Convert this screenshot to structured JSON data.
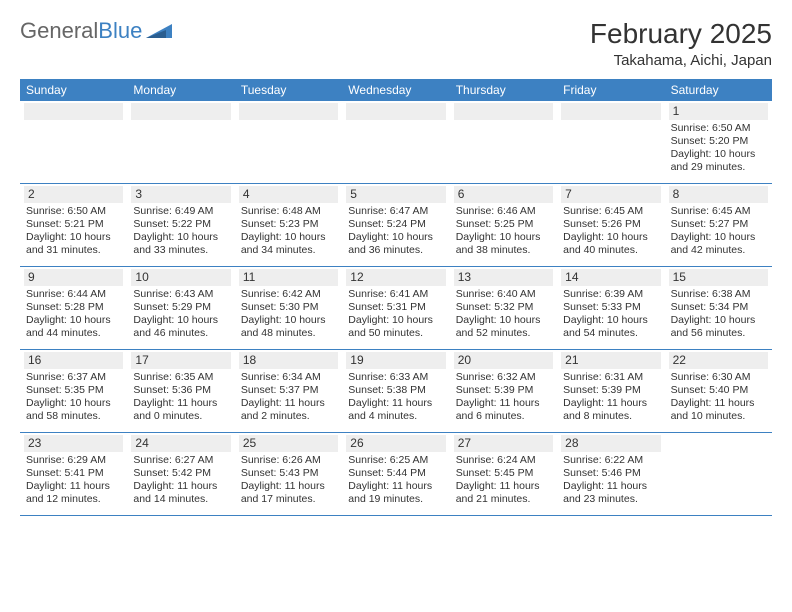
{
  "brand": {
    "part1": "General",
    "part2": "Blue"
  },
  "title": "February 2025",
  "location": "Takahama, Aichi, Japan",
  "dow": [
    "Sunday",
    "Monday",
    "Tuesday",
    "Wednesday",
    "Thursday",
    "Friday",
    "Saturday"
  ],
  "colors": {
    "header_bg": "#3d81c2",
    "header_text": "#ffffff",
    "daynum_bg": "#eeeeee",
    "text": "#333333",
    "row_border": "#3d81c2"
  },
  "weeks": [
    [
      null,
      null,
      null,
      null,
      null,
      null,
      {
        "n": "1",
        "sr": "6:50 AM",
        "ss": "5:20 PM",
        "dl": "10 hours and 29 minutes."
      }
    ],
    [
      {
        "n": "2",
        "sr": "6:50 AM",
        "ss": "5:21 PM",
        "dl": "10 hours and 31 minutes."
      },
      {
        "n": "3",
        "sr": "6:49 AM",
        "ss": "5:22 PM",
        "dl": "10 hours and 33 minutes."
      },
      {
        "n": "4",
        "sr": "6:48 AM",
        "ss": "5:23 PM",
        "dl": "10 hours and 34 minutes."
      },
      {
        "n": "5",
        "sr": "6:47 AM",
        "ss": "5:24 PM",
        "dl": "10 hours and 36 minutes."
      },
      {
        "n": "6",
        "sr": "6:46 AM",
        "ss": "5:25 PM",
        "dl": "10 hours and 38 minutes."
      },
      {
        "n": "7",
        "sr": "6:45 AM",
        "ss": "5:26 PM",
        "dl": "10 hours and 40 minutes."
      },
      {
        "n": "8",
        "sr": "6:45 AM",
        "ss": "5:27 PM",
        "dl": "10 hours and 42 minutes."
      }
    ],
    [
      {
        "n": "9",
        "sr": "6:44 AM",
        "ss": "5:28 PM",
        "dl": "10 hours and 44 minutes."
      },
      {
        "n": "10",
        "sr": "6:43 AM",
        "ss": "5:29 PM",
        "dl": "10 hours and 46 minutes."
      },
      {
        "n": "11",
        "sr": "6:42 AM",
        "ss": "5:30 PM",
        "dl": "10 hours and 48 minutes."
      },
      {
        "n": "12",
        "sr": "6:41 AM",
        "ss": "5:31 PM",
        "dl": "10 hours and 50 minutes."
      },
      {
        "n": "13",
        "sr": "6:40 AM",
        "ss": "5:32 PM",
        "dl": "10 hours and 52 minutes."
      },
      {
        "n": "14",
        "sr": "6:39 AM",
        "ss": "5:33 PM",
        "dl": "10 hours and 54 minutes."
      },
      {
        "n": "15",
        "sr": "6:38 AM",
        "ss": "5:34 PM",
        "dl": "10 hours and 56 minutes."
      }
    ],
    [
      {
        "n": "16",
        "sr": "6:37 AM",
        "ss": "5:35 PM",
        "dl": "10 hours and 58 minutes."
      },
      {
        "n": "17",
        "sr": "6:35 AM",
        "ss": "5:36 PM",
        "dl": "11 hours and 0 minutes."
      },
      {
        "n": "18",
        "sr": "6:34 AM",
        "ss": "5:37 PM",
        "dl": "11 hours and 2 minutes."
      },
      {
        "n": "19",
        "sr": "6:33 AM",
        "ss": "5:38 PM",
        "dl": "11 hours and 4 minutes."
      },
      {
        "n": "20",
        "sr": "6:32 AM",
        "ss": "5:39 PM",
        "dl": "11 hours and 6 minutes."
      },
      {
        "n": "21",
        "sr": "6:31 AM",
        "ss": "5:39 PM",
        "dl": "11 hours and 8 minutes."
      },
      {
        "n": "22",
        "sr": "6:30 AM",
        "ss": "5:40 PM",
        "dl": "11 hours and 10 minutes."
      }
    ],
    [
      {
        "n": "23",
        "sr": "6:29 AM",
        "ss": "5:41 PM",
        "dl": "11 hours and 12 minutes."
      },
      {
        "n": "24",
        "sr": "6:27 AM",
        "ss": "5:42 PM",
        "dl": "11 hours and 14 minutes."
      },
      {
        "n": "25",
        "sr": "6:26 AM",
        "ss": "5:43 PM",
        "dl": "11 hours and 17 minutes."
      },
      {
        "n": "26",
        "sr": "6:25 AM",
        "ss": "5:44 PM",
        "dl": "11 hours and 19 minutes."
      },
      {
        "n": "27",
        "sr": "6:24 AM",
        "ss": "5:45 PM",
        "dl": "11 hours and 21 minutes."
      },
      {
        "n": "28",
        "sr": "6:22 AM",
        "ss": "5:46 PM",
        "dl": "11 hours and 23 minutes."
      },
      null
    ]
  ],
  "labels": {
    "sunrise": "Sunrise:",
    "sunset": "Sunset:",
    "daylight": "Daylight:"
  }
}
